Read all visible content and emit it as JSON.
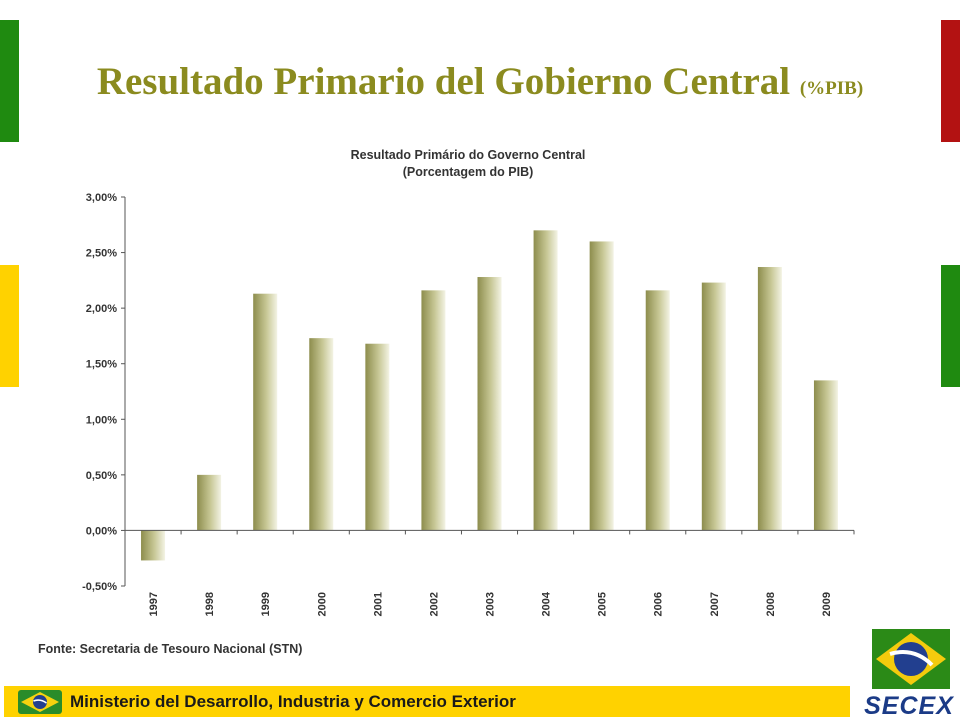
{
  "slide": {
    "title": "Resultado Primario del Gobierno Central",
    "title_unit": "(%PIB)",
    "footer_text": "Ministerio del Desarrollo, Industria y Comercio Exterior",
    "logo_text": "SECEX",
    "icons": [
      "brazil-flag-icon",
      "secex-logo-icon"
    ],
    "colors": {
      "green": "#1f8a10",
      "yellow": "#ffd200",
      "red": "#b31212",
      "title": "#8b8b1f",
      "bar": "#a7a769",
      "navy": "#1b3b87"
    }
  },
  "chart_data": {
    "type": "bar",
    "title": "Resultado Primário do Governo Central",
    "subtitle": "(Porcentagem do PIB)",
    "categories": [
      "1997",
      "1998",
      "1999",
      "2000",
      "2001",
      "2002",
      "2003",
      "2004",
      "2005",
      "2006",
      "2007",
      "2008",
      "2009"
    ],
    "values": [
      -0.27,
      0.5,
      2.13,
      1.73,
      1.68,
      2.16,
      2.28,
      2.7,
      2.6,
      2.16,
      2.23,
      2.37,
      1.35
    ],
    "y_ticks": [
      "3,00%",
      "2,50%",
      "2,00%",
      "1,50%",
      "1,00%",
      "0,50%",
      "0,00%",
      "-0,50%"
    ],
    "ylim": [
      -0.5,
      3.0
    ],
    "xlabel": "",
    "ylabel": "",
    "grid": false,
    "source": "Fonte: Secretaria de Tesouro Nacional  (STN)"
  }
}
